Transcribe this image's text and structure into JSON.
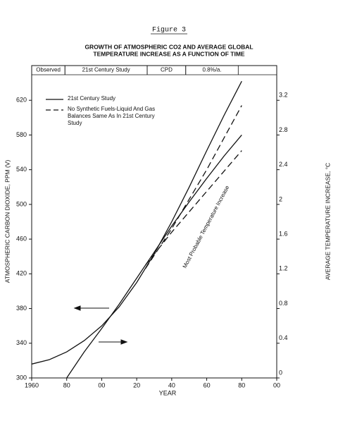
{
  "chart_data": {
    "type": "line",
    "figure_label": "Figure 3",
    "title": [
      "GROWTH OF ATMOSPHERIC CO2 AND AVERAGE GLOBAL",
      "TEMPERATURE INCREASE AS A FUNCTION OF TIME"
    ],
    "x_label": "YEAR",
    "y_label": "ATMOSPHERIC CARBON DIOXIDE, PPM (V)",
    "y2_label": "AVERAGE TEMPERATURE INCREASE, °C",
    "annotation": "Most Probable Temperature Increase",
    "periods": [
      {
        "label": "Observed",
        "start": 1960,
        "end": 1979
      },
      {
        "label": "21st Century Study",
        "start": 1979,
        "end": 2026
      },
      {
        "label": "CPD",
        "start": 2026,
        "end": 2048
      },
      {
        "label": "0.8%/a.",
        "start": 2048,
        "end": 2078
      }
    ],
    "xlim": [
      1960,
      2100
    ],
    "xticks": [
      {
        "value": 1960,
        "label": "1960"
      },
      {
        "value": 1980,
        "label": "80"
      },
      {
        "value": 2000,
        "label": "00"
      },
      {
        "value": 2020,
        "label": "20"
      },
      {
        "value": 2040,
        "label": "40"
      },
      {
        "value": 2060,
        "label": "60"
      },
      {
        "value": 2080,
        "label": "80"
      },
      {
        "value": 2100,
        "label": "00"
      }
    ],
    "ylim": [
      300,
      660
    ],
    "yticks": [
      300,
      340,
      380,
      420,
      460,
      500,
      540,
      580,
      620
    ],
    "y2lim": [
      0,
      3.6
    ],
    "y2ticks": [
      0,
      0.4,
      0.8,
      1.2,
      1.6,
      2.0,
      2.4,
      2.8,
      3.2
    ],
    "grid": false,
    "series": [
      {
        "name": "21st Century Study",
        "color": "#111",
        "dashed": false,
        "x": [
          1960,
          1970,
          1980,
          1990,
          2000,
          2010,
          2020,
          2030,
          2040,
          2050,
          2060,
          2070,
          2080
        ],
        "values": [
          316,
          321,
          330,
          343,
          360,
          382,
          410,
          443,
          480,
          520,
          562,
          603,
          642
        ]
      },
      {
        "name": "No Synthetic Fuels-Liquid And Gas Balances Same As In 21st Century Study",
        "color": "#111",
        "dashed": true,
        "x": [
          2025,
          2040,
          2060,
          2080
        ],
        "values": [
          426,
          472,
          540,
          614
        ]
      },
      {
        "color": "#111",
        "dashed": false,
        "axis": "y2",
        "x": [
          1980,
          1990,
          2000,
          2010,
          2020,
          2030,
          2040,
          2050,
          2060,
          2070,
          2080
        ],
        "values": [
          0,
          0.3,
          0.57,
          0.85,
          1.15,
          1.45,
          1.75,
          2.03,
          2.3,
          2.56,
          2.8
        ]
      },
      {
        "color": "#111",
        "dashed": true,
        "axis": "y2",
        "x": [
          2025,
          2040,
          2060,
          2080
        ],
        "values": [
          1.3,
          1.68,
          2.15,
          2.62
        ]
      }
    ]
  }
}
